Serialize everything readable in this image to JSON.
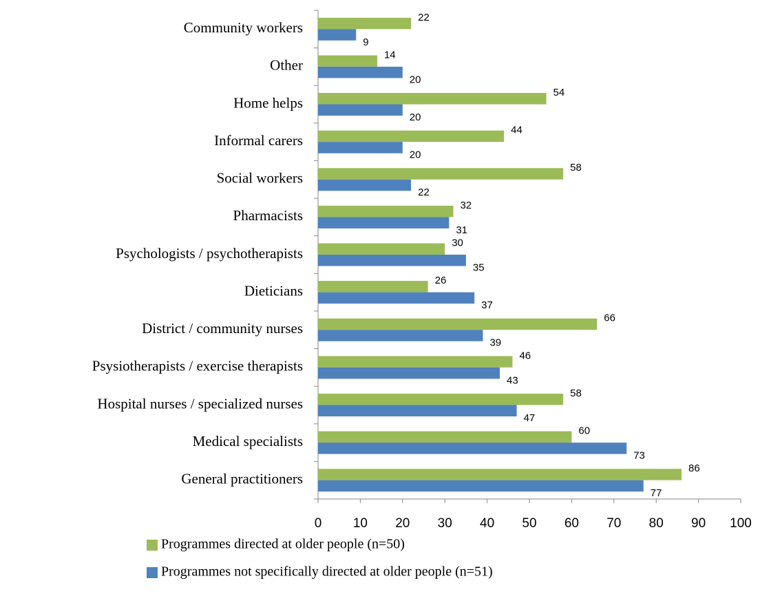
{
  "chart_data": {
    "type": "bar",
    "orientation": "horizontal",
    "categories": [
      "Community workers",
      "Other",
      "Home helps",
      "Informal carers",
      "Social workers",
      "Pharmacists",
      "Psychologists / psychotherapists",
      "Dieticians",
      "District / community nurses",
      "Psysiotherapists / exercise therapists",
      "Hospital nurses / specialized nurses",
      "Medical specialists",
      "General practitioners"
    ],
    "series": [
      {
        "name": "Programmes directed at older people (n=50)",
        "color": "#9bbb59",
        "values": [
          22,
          14,
          54,
          44,
          58,
          32,
          30,
          26,
          66,
          46,
          58,
          60,
          86
        ]
      },
      {
        "name": "Programmes not specifically directed at older people (n=51)",
        "color": "#4f81bd",
        "values": [
          9,
          20,
          20,
          20,
          22,
          31,
          35,
          37,
          39,
          43,
          47,
          73,
          77
        ]
      }
    ],
    "xlim": [
      0,
      100
    ],
    "xticks": [
      0,
      10,
      20,
      30,
      40,
      50,
      60,
      70,
      80,
      90,
      100
    ],
    "legend": "bottom"
  }
}
